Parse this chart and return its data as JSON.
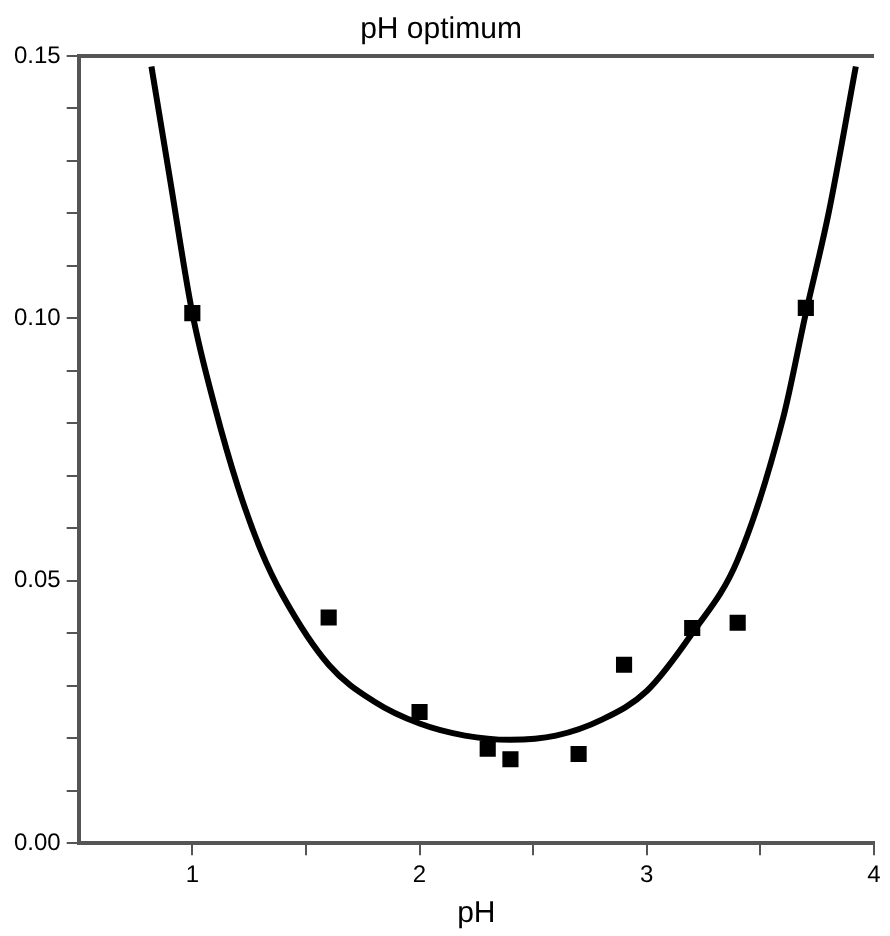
{
  "chart_data": {
    "type": "scatter",
    "title": "pH optimum",
    "xlabel": "pH",
    "xlim": [
      0.5,
      4
    ],
    "xticks": [
      1,
      {
        "value": 1.5,
        "label": null
      },
      2,
      {
        "value": 2.5,
        "label": null
      },
      3,
      {
        "value": 3.5,
        "label": null
      },
      4
    ],
    "ylim": [
      0,
      0.15
    ],
    "yticks": [
      {
        "value": 0,
        "label": "0.00"
      },
      {
        "value": 0.01,
        "label": null
      },
      {
        "value": 0.02,
        "label": null
      },
      {
        "value": 0.03,
        "label": null
      },
      {
        "value": 0.04,
        "label": null
      },
      {
        "value": 0.05,
        "label": "0.05"
      },
      {
        "value": 0.06,
        "label": null
      },
      {
        "value": 0.07,
        "label": null
      },
      {
        "value": 0.08,
        "label": null
      },
      {
        "value": 0.09,
        "label": null
      },
      {
        "value": 0.1,
        "label": "0.10"
      },
      {
        "value": 0.11,
        "label": null
      },
      {
        "value": 0.12,
        "label": null
      },
      {
        "value": 0.13,
        "label": null
      },
      {
        "value": 0.14,
        "label": null
      },
      {
        "value": 0.15,
        "label": "0.15"
      }
    ],
    "grid": false,
    "legend": false,
    "series": [
      {
        "marker": "square",
        "color": "#000000",
        "x": [
          1.0,
          1.6,
          2.0,
          2.3,
          2.4,
          2.7,
          2.9,
          3.2,
          3.4,
          3.7
        ],
        "values": [
          0.101,
          0.043,
          0.025,
          0.018,
          0.016,
          0.017,
          0.034,
          0.041,
          0.042,
          0.102
        ]
      },
      {
        "type": "line",
        "marker": "none",
        "line_style": "solid",
        "color": "#000000",
        "x": [
          0.82,
          0.9,
          1.0,
          1.1,
          1.2,
          1.3,
          1.4,
          1.6,
          1.8,
          2.0,
          2.2,
          2.4,
          2.6,
          2.8,
          3.0,
          3.2,
          3.4,
          3.6,
          3.7,
          3.8,
          3.92
        ],
        "values": [
          0.148,
          0.127,
          0.101,
          0.083,
          0.068,
          0.056,
          0.047,
          0.034,
          0.027,
          0.0228,
          0.0205,
          0.0197,
          0.0205,
          0.0235,
          0.029,
          0.04,
          0.054,
          0.081,
          0.101,
          0.12,
          0.148
        ]
      }
    ]
  }
}
